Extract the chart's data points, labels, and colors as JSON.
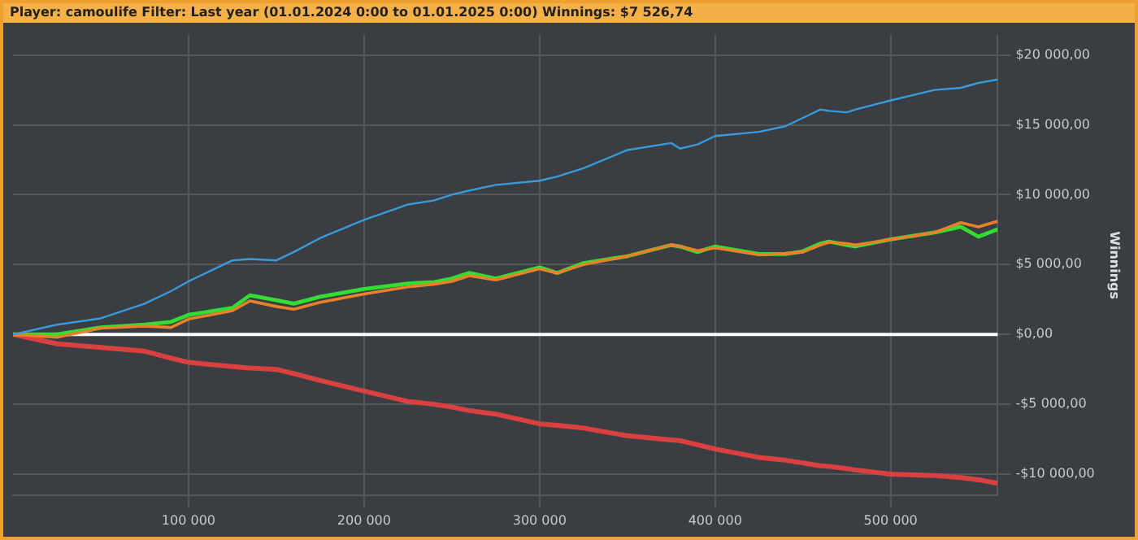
{
  "chart_data": {
    "type": "line",
    "title": "Player: camoulife Filter: Last year (01.01.2024 0:00 to 01.01.2025 0:00) Winnings: $7 526,74",
    "ylabel": "Winnings",
    "x": [
      0,
      25000,
      50000,
      75000,
      90000,
      100000,
      125000,
      135000,
      150000,
      160000,
      175000,
      200000,
      225000,
      240000,
      250000,
      260000,
      275000,
      300000,
      310000,
      325000,
      350000,
      375000,
      380000,
      390000,
      400000,
      425000,
      440000,
      450000,
      460000,
      465000,
      475000,
      480000,
      500000,
      525000,
      540000,
      550000,
      561000
    ],
    "series": [
      {
        "color": "#3a9ad9",
        "values": [
          0,
          700,
          1150,
          2200,
          3100,
          3800,
          5300,
          5400,
          5300,
          5900,
          6900,
          8200,
          9300,
          9600,
          10000,
          10300,
          10700,
          11000,
          11300,
          11900,
          13200,
          13700,
          13300,
          13600,
          14200,
          14500,
          14900,
          15500,
          16100,
          16000,
          15900,
          16100,
          16750,
          17500,
          17650,
          18000,
          18250
        ]
      },
      {
        "color": "#e8812a",
        "values": [
          0,
          -200,
          450,
          600,
          500,
          1100,
          1700,
          2400,
          2000,
          1800,
          2300,
          2900,
          3400,
          3600,
          3800,
          4200,
          3900,
          4700,
          4400,
          5000,
          5600,
          6400,
          6300,
          6000,
          6200,
          5700,
          5800,
          5900,
          6400,
          6600,
          6500,
          6400,
          6800,
          7300,
          8000,
          7700,
          8100
        ]
      },
      {
        "color": "#33dd33",
        "values": [
          0,
          0,
          500,
          700,
          900,
          1400,
          1900,
          2800,
          2450,
          2200,
          2700,
          3250,
          3650,
          3750,
          4000,
          4400,
          4000,
          4800,
          4400,
          5100,
          5600,
          6400,
          6300,
          5900,
          6300,
          5750,
          5750,
          5950,
          6500,
          6650,
          6400,
          6300,
          6800,
          7300,
          7700,
          7000,
          7530
        ]
      },
      {
        "color": "#d94040",
        "values": [
          0,
          -670,
          -930,
          -1200,
          -1700,
          -2000,
          -2300,
          -2400,
          -2500,
          -2800,
          -3300,
          -4050,
          -4800,
          -5000,
          -5200,
          -5450,
          -5700,
          -6400,
          -6500,
          -6700,
          -7250,
          -7550,
          -7600,
          -7900,
          -8200,
          -8800,
          -9000,
          -9200,
          -9400,
          -9450,
          -9600,
          -9700,
          -10000,
          -10100,
          -10250,
          -10400,
          -10650
        ]
      }
    ],
    "xlim": [
      0,
      561000
    ],
    "xticks": [
      {
        "value": 100000,
        "label": "100 000"
      },
      {
        "value": 200000,
        "label": "200 000"
      },
      {
        "value": 300000,
        "label": "300 000"
      },
      {
        "value": 400000,
        "label": "400 000"
      },
      {
        "value": 500000,
        "label": "500 000"
      }
    ],
    "ylim": [
      -11500,
      21400
    ],
    "yticks": [
      {
        "value": -10000,
        "label": "-$10 000,00"
      },
      {
        "value": -5000,
        "label": "-$5 000,00"
      },
      {
        "value": 0,
        "label": "$0,00"
      },
      {
        "value": 5000,
        "label": "$5 000,00"
      },
      {
        "value": 10000,
        "label": "$10 000,00"
      },
      {
        "value": 15000,
        "label": "$15 000,00"
      },
      {
        "value": 20000,
        "label": "$20 000,00"
      }
    ],
    "ref_lines": [
      {
        "axis": "y",
        "value": 0,
        "color": "#ffffff"
      }
    ],
    "grid": true,
    "legend": false,
    "marker": "none",
    "line_style": "solid"
  }
}
